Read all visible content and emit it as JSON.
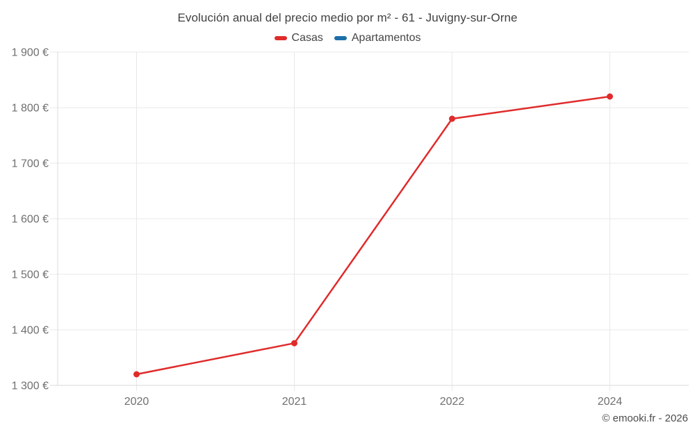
{
  "title": "Evolución anual del precio medio por m² - 61 - Juvigny-sur-Orne",
  "legend": {
    "items": [
      {
        "label": "Casas",
        "color": "#e02b2b"
      },
      {
        "label": "Apartamentos",
        "color": "#1c6fa8"
      }
    ]
  },
  "footer": {
    "attribution": "© emooki.fr - 2026"
  },
  "colors": {
    "casas_red": "#e02b2b",
    "apartamentos_blue": "#1c6fa8",
    "grid": "#e8e8e8",
    "axis": "#d9d9d9",
    "tick_text": "#6f6f6f",
    "title_text": "#404040"
  },
  "chart_data": {
    "type": "line",
    "title": "Evolución anual del precio medio por m² - 61 - Juvigny-sur-Orne",
    "categories": [
      "2020",
      "2021",
      "2022",
      "2024"
    ],
    "series": [
      {
        "name": "Casas",
        "color": "#e02b2b",
        "values": [
          1320,
          1376,
          1780,
          1820
        ]
      },
      {
        "name": "Apartamentos",
        "color": "#1c6fa8",
        "values": []
      }
    ],
    "xlabel": "",
    "ylabel": "",
    "ylim": [
      1300,
      1900
    ],
    "y_ticks": [
      {
        "value": 1900,
        "label": "1 900 €"
      },
      {
        "value": 1800,
        "label": "1 800 €"
      },
      {
        "value": 1700,
        "label": "1 700 €"
      },
      {
        "value": 1600,
        "label": "1 600 €"
      },
      {
        "value": 1500,
        "label": "1 500 €"
      },
      {
        "value": 1400,
        "label": "1 400 €"
      },
      {
        "value": 1300,
        "label": "1 300 €"
      }
    ],
    "grid": true,
    "legend_position": "top",
    "marker": "circle",
    "currency": "€"
  }
}
